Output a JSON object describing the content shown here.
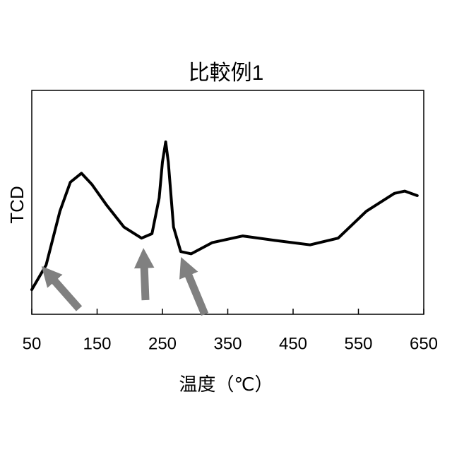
{
  "chart_data": {
    "type": "line",
    "title": "比較例1",
    "xlabel": "温度（℃）",
    "ylabel": "TCD",
    "x": [
      50,
      72,
      93,
      109,
      126,
      142,
      164,
      191,
      218,
      234,
      245,
      250,
      255,
      259,
      267,
      278,
      294,
      326,
      373,
      422,
      476,
      519,
      562,
      605,
      621,
      640
    ],
    "series": [
      {
        "color": "#000000",
        "values": [
          11,
          22,
          46,
          59,
          63,
          58,
          49,
          39,
          34,
          36,
          52,
          68,
          77,
          68,
          39,
          28,
          27,
          32,
          35,
          33,
          31,
          34,
          46,
          54,
          55,
          53
        ]
      }
    ],
    "xlim": [
      50,
      650
    ],
    "xticks": [
      50,
      150,
      250,
      350,
      450,
      550,
      650
    ],
    "ylim": [
      0,
      100
    ]
  }
}
